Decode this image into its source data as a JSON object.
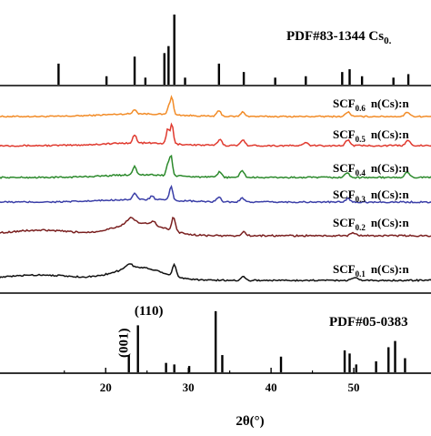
{
  "chart_data": {
    "type": "line",
    "xlabel": "2θ(°)",
    "xlim": [
      7,
      60
    ],
    "x_ticks": [
      {
        "value": 20,
        "label": "20"
      },
      {
        "value": 30,
        "label": "30"
      },
      {
        "value": 40,
        "label": "40"
      },
      {
        "value": 50,
        "label": "50"
      }
    ],
    "reference_patterns": [
      {
        "name": "PDF#83-1344 Cs",
        "name_subscript": "0.",
        "color": "#000000",
        "peaks": [
          {
            "x": 14.3,
            "i": 0.3
          },
          {
            "x": 20.1,
            "i": 0.12
          },
          {
            "x": 23.5,
            "i": 0.4
          },
          {
            "x": 24.8,
            "i": 0.1
          },
          {
            "x": 27.1,
            "i": 0.45
          },
          {
            "x": 27.6,
            "i": 0.55
          },
          {
            "x": 28.3,
            "i": 1.0
          },
          {
            "x": 29.6,
            "i": 0.1
          },
          {
            "x": 33.7,
            "i": 0.3
          },
          {
            "x": 36.7,
            "i": 0.18
          },
          {
            "x": 40.5,
            "i": 0.1
          },
          {
            "x": 44.2,
            "i": 0.12
          },
          {
            "x": 48.6,
            "i": 0.18
          },
          {
            "x": 49.5,
            "i": 0.22
          },
          {
            "x": 51.0,
            "i": 0.12
          },
          {
            "x": 54.8,
            "i": 0.1
          },
          {
            "x": 56.6,
            "i": 0.15
          }
        ]
      },
      {
        "name": "PDF#05-0383",
        "color": "#000000",
        "peaks": [
          {
            "x": 22.8,
            "i": 0.22
          },
          {
            "x": 23.9,
            "i": 0.6
          },
          {
            "x": 27.3,
            "i": 0.12
          },
          {
            "x": 28.3,
            "i": 0.1
          },
          {
            "x": 30.1,
            "i": 0.08
          },
          {
            "x": 33.3,
            "i": 0.78
          },
          {
            "x": 34.1,
            "i": 0.22
          },
          {
            "x": 41.2,
            "i": 0.2
          },
          {
            "x": 48.9,
            "i": 0.28
          },
          {
            "x": 49.5,
            "i": 0.24
          },
          {
            "x": 50.3,
            "i": 0.1
          },
          {
            "x": 52.7,
            "i": 0.14
          },
          {
            "x": 54.2,
            "i": 0.32
          },
          {
            "x": 55.0,
            "i": 0.4
          },
          {
            "x": 56.2,
            "i": 0.18
          }
        ],
        "annotations": [
          {
            "text": "(001)",
            "x": 22.8
          },
          {
            "text": "(110)",
            "x": 23.9
          }
        ]
      }
    ],
    "series": [
      {
        "name": "SCF",
        "sub": "0.6",
        "suffix": "n(Cs):n",
        "color": "#f28c28",
        "background": "flat",
        "noise": 0.14,
        "peaks": [
          {
            "x": 23.5,
            "h": 0.5,
            "w": 0.3
          },
          {
            "x": 27.6,
            "h": 0.8,
            "w": 0.25
          },
          {
            "x": 28.0,
            "h": 2.0,
            "w": 0.25
          },
          {
            "x": 33.7,
            "h": 0.6,
            "w": 0.35
          },
          {
            "x": 36.6,
            "h": 0.5,
            "w": 0.35
          },
          {
            "x": 49.3,
            "h": 0.5,
            "w": 0.4
          },
          {
            "x": 56.5,
            "h": 0.5,
            "w": 0.4
          }
        ]
      },
      {
        "name": "SCF",
        "sub": "0.5",
        "suffix": "n(Cs):n",
        "color": "#e03a2f",
        "background": "flat",
        "noise": 0.16,
        "peaks": [
          {
            "x": 23.5,
            "h": 0.9,
            "w": 0.3
          },
          {
            "x": 27.5,
            "h": 1.6,
            "w": 0.25
          },
          {
            "x": 28.0,
            "h": 2.2,
            "w": 0.25
          },
          {
            "x": 33.8,
            "h": 0.7,
            "w": 0.35
          },
          {
            "x": 36.6,
            "h": 0.7,
            "w": 0.35
          },
          {
            "x": 44.2,
            "h": 0.3,
            "w": 0.4
          },
          {
            "x": 49.3,
            "h": 0.6,
            "w": 0.4
          },
          {
            "x": 56.6,
            "h": 0.6,
            "w": 0.4
          }
        ]
      },
      {
        "name": "SCF",
        "sub": "0.4",
        "suffix": "n(Cs):n",
        "color": "#2c8a2c",
        "background": "flat",
        "noise": 0.16,
        "peaks": [
          {
            "x": 23.5,
            "h": 1.0,
            "w": 0.3
          },
          {
            "x": 27.5,
            "h": 1.2,
            "w": 0.25
          },
          {
            "x": 27.9,
            "h": 2.2,
            "w": 0.25
          },
          {
            "x": 33.8,
            "h": 0.6,
            "w": 0.35
          },
          {
            "x": 36.5,
            "h": 0.8,
            "w": 0.35
          },
          {
            "x": 49.2,
            "h": 0.5,
            "w": 0.4
          },
          {
            "x": 56.5,
            "h": 0.6,
            "w": 0.4
          }
        ]
      },
      {
        "name": "SCF",
        "sub": "0.3",
        "suffix": "n(Cs):n",
        "color": "#3b3fa8",
        "background": "flat",
        "noise": 0.16,
        "peaks": [
          {
            "x": 23.5,
            "h": 0.7,
            "w": 0.3
          },
          {
            "x": 25.6,
            "h": 0.4,
            "w": 0.3
          },
          {
            "x": 27.9,
            "h": 1.5,
            "w": 0.28
          },
          {
            "x": 33.7,
            "h": 0.5,
            "w": 0.35
          },
          {
            "x": 36.5,
            "h": 0.5,
            "w": 0.35
          },
          {
            "x": 49.3,
            "h": 0.4,
            "w": 0.4
          }
        ]
      },
      {
        "name": "SCF",
        "sub": "0.2",
        "suffix": "n(Cs):n",
        "color": "#7a1f1f",
        "background": "hump",
        "noise": 0.18,
        "peaks": [
          {
            "x": 23.0,
            "h": 0.6,
            "w": 0.6
          },
          {
            "x": 25.8,
            "h": 0.4,
            "w": 0.4
          },
          {
            "x": 28.2,
            "h": 1.6,
            "w": 0.3
          },
          {
            "x": 36.7,
            "h": 0.4,
            "w": 0.4
          },
          {
            "x": 50.0,
            "h": 0.3,
            "w": 0.5
          }
        ]
      },
      {
        "name": "SCF",
        "sub": "0.1",
        "suffix": "n(Cs):n",
        "color": "#111111",
        "background": "hump",
        "noise": 0.16,
        "peaks": [
          {
            "x": 22.8,
            "h": 0.5,
            "w": 0.6
          },
          {
            "x": 28.3,
            "h": 1.2,
            "w": 0.3
          },
          {
            "x": 36.6,
            "h": 0.4,
            "w": 0.4
          },
          {
            "x": 50.2,
            "h": 0.3,
            "w": 0.5
          }
        ]
      }
    ]
  }
}
